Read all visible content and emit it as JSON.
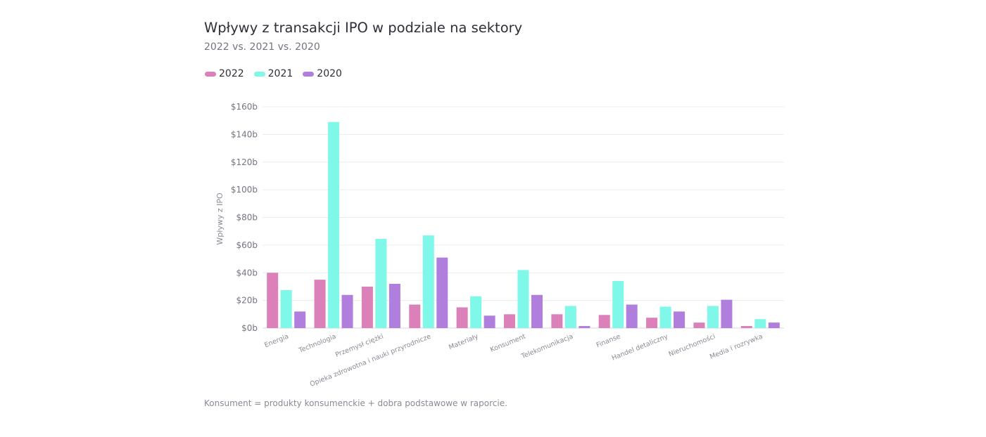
{
  "header": {
    "title": "Wpływy z transakcji IPO w podziale na sektory",
    "subtitle": "2022 vs. 2021 vs. 2020"
  },
  "legend": {
    "items": [
      {
        "label": "2022",
        "color": "#dc80b9"
      },
      {
        "label": "2021",
        "color": "#7ff8ea"
      },
      {
        "label": "2020",
        "color": "#b07fdd"
      }
    ]
  },
  "footnote": "Konsument = produkty konsumenckie + dobra podstawowe w raporcie.",
  "chart_data": {
    "type": "bar",
    "ylabel": "Wpływy z IPO",
    "ylim": [
      0,
      160
    ],
    "yticks": [
      0,
      20,
      40,
      60,
      80,
      100,
      120,
      140,
      160
    ],
    "ytick_labels": [
      "$0b",
      "$20b",
      "$40b",
      "$60b",
      "$80b",
      "$100b",
      "$120b",
      "$140b",
      "$160b"
    ],
    "grid": true,
    "legend_position": "top-left",
    "categories": [
      "Energia",
      "Technologia",
      "Przemysł ciężki",
      "Opieka zdrowotna i nauki przyrodnicze",
      "Materiały",
      "Konsument",
      "Telekomunikacja",
      "Finanse",
      "Handel detaliczny",
      "Nieruchomości",
      "Media i rozrywka"
    ],
    "series": [
      {
        "name": "2022",
        "color": "#dc80b9",
        "values": [
          40,
          35,
          30,
          17,
          15,
          10,
          10,
          9.5,
          7.5,
          4,
          1.5
        ]
      },
      {
        "name": "2021",
        "color": "#7ff8ea",
        "values": [
          27.5,
          149,
          64.5,
          67,
          23,
          42,
          16,
          34,
          15.5,
          16,
          6.5
        ]
      },
      {
        "name": "2020",
        "color": "#b07fdd",
        "values": [
          12,
          24,
          32,
          51,
          9,
          24,
          1.5,
          17,
          12,
          20.5,
          4
        ]
      }
    ]
  }
}
